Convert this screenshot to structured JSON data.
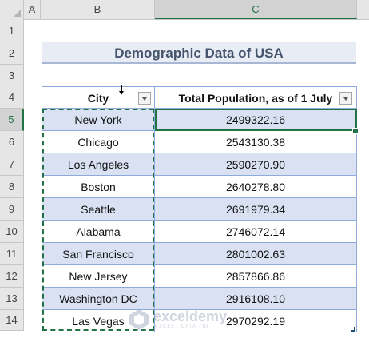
{
  "columns": {
    "A": "A",
    "B": "B",
    "C": "C"
  },
  "rows": [
    "1",
    "2",
    "3",
    "4",
    "5",
    "6",
    "7",
    "8",
    "9",
    "10",
    "11",
    "12",
    "13",
    "14"
  ],
  "title": "Demographic Data of USA",
  "table": {
    "headers": [
      "City",
      "Total Population, as of 1 July"
    ],
    "rows": [
      [
        "New York",
        "2499322.16"
      ],
      [
        "Chicago",
        "2543130.38"
      ],
      [
        "Los Angeles",
        "2590270.90"
      ],
      [
        "Boston",
        "2640278.80"
      ],
      [
        "Seattle",
        "2691979.34"
      ],
      [
        "Alabama",
        "2746072.14"
      ],
      [
        "San Francisco",
        "2801002.63"
      ],
      [
        "New Jersey",
        "2857866.86"
      ],
      [
        "Washington DC",
        "2916108.10"
      ],
      [
        "Las Vegas",
        "2970292.19"
      ]
    ]
  },
  "selection": {
    "active_cell": "C5",
    "copy_range": "B5:B14"
  },
  "colors": {
    "accent": "#217346",
    "band": "#d9e1f2",
    "border": "#8ea9db",
    "title_text": "#44546a"
  },
  "watermark": {
    "name": "exceldemy",
    "tagline": "EXCEL · DATA · BI"
  }
}
